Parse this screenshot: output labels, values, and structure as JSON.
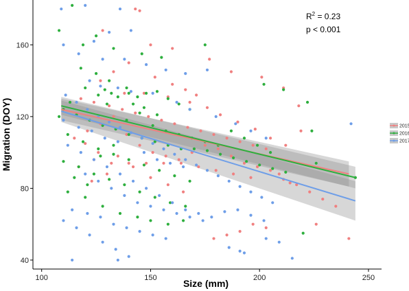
{
  "chart_data": {
    "type": "scatter",
    "xlabel": "Size (mm)",
    "ylabel": "Migration (DOY)",
    "xlim": [
      96,
      256
    ],
    "ylim": [
      35,
      185
    ],
    "xticks": [
      100,
      150,
      200,
      250
    ],
    "yticks": [
      40,
      80,
      120,
      160
    ],
    "grid": false,
    "legend_position": "right",
    "annotations": {
      "r2_prefix": "R",
      "r2_sup": "2",
      "r2_value": " = 0.23",
      "p_text": "p < 0.001"
    },
    "series": [
      {
        "name": "2015",
        "color": "#F08080",
        "fit": {
          "x": [
            109,
            241
          ],
          "y": [
            124,
            88
          ]
        },
        "ci": {
          "x": [
            109,
            241
          ],
          "upper": [
            130,
            95
          ],
          "lower": [
            118,
            81
          ]
        },
        "points": [
          [
            143,
            180
          ],
          [
            145,
            179
          ],
          [
            128,
            168
          ],
          [
            150,
            160
          ],
          [
            160,
            158
          ],
          [
            177,
            152
          ],
          [
            187,
            145
          ],
          [
            201,
            142
          ],
          [
            211,
            136
          ],
          [
            218,
            126
          ],
          [
            138,
            133
          ],
          [
            147,
            133
          ],
          [
            158,
            131
          ],
          [
            168,
            128
          ],
          [
            176,
            125
          ],
          [
            182,
            121
          ],
          [
            190,
            117
          ],
          [
            198,
            113
          ],
          [
            205,
            108
          ],
          [
            212,
            104
          ],
          [
            118,
            130
          ],
          [
            124,
            128
          ],
          [
            131,
            126
          ],
          [
            137,
            124
          ],
          [
            143,
            122
          ],
          [
            149,
            120
          ],
          [
            155,
            118
          ],
          [
            161,
            116
          ],
          [
            167,
            114
          ],
          [
            173,
            112
          ],
          [
            179,
            110
          ],
          [
            185,
            108
          ],
          [
            191,
            106
          ],
          [
            197,
            104
          ],
          [
            203,
            102
          ],
          [
            124,
            96
          ],
          [
            132,
            94
          ],
          [
            140,
            94
          ],
          [
            148,
            94
          ],
          [
            156,
            94
          ],
          [
            164,
            94
          ],
          [
            172,
            92
          ],
          [
            180,
            90
          ],
          [
            188,
            88
          ],
          [
            196,
            86
          ],
          [
            115,
            108
          ],
          [
            121,
            112
          ],
          [
            127,
            116
          ],
          [
            133,
            120
          ],
          [
            139,
            110
          ],
          [
            145,
            104
          ],
          [
            151,
            100
          ],
          [
            157,
            98
          ],
          [
            163,
            96
          ],
          [
            169,
            100
          ],
          [
            175,
            104
          ],
          [
            181,
            102
          ],
          [
            187,
            98
          ],
          [
            193,
            94
          ],
          [
            199,
            92
          ],
          [
            205,
            90
          ],
          [
            211,
            85
          ],
          [
            217,
            82
          ],
          [
            223,
            78
          ],
          [
            229,
            74
          ],
          [
            235,
            70
          ],
          [
            179,
            52
          ],
          [
            185,
            54
          ],
          [
            191,
            56
          ],
          [
            197,
            60
          ],
          [
            203,
            58
          ],
          [
            226,
            60
          ],
          [
            241,
            52
          ],
          [
            214,
            83
          ],
          [
            219,
            112
          ],
          [
            209,
            88
          ],
          [
            140,
            150
          ],
          [
            133,
            145
          ],
          [
            127,
            140
          ],
          [
            152,
            142
          ],
          [
            160,
            138
          ],
          [
            166,
            135
          ],
          [
            171,
            132
          ],
          [
            120,
            105
          ],
          [
            126,
            100
          ],
          [
            135,
            98
          ],
          [
            142,
            92
          ],
          [
            150,
            86
          ],
          [
            158,
            82
          ],
          [
            165,
            78
          ],
          [
            130,
            88
          ],
          [
            123,
            84
          ],
          [
            117,
            92
          ]
        ]
      },
      {
        "name": "2016",
        "color": "#2EAF3E",
        "fit": {
          "x": [
            109,
            244
          ],
          "y": [
            126,
            86
          ]
        },
        "ci": {
          "x": [
            109,
            244
          ],
          "upper": [
            131,
            92
          ],
          "lower": [
            121,
            80
          ]
        },
        "points": [
          [
            114,
            182
          ],
          [
            108,
            168
          ],
          [
            125,
            165
          ],
          [
            119,
            160
          ],
          [
            133,
            158
          ],
          [
            146,
            155
          ],
          [
            155,
            153
          ],
          [
            175,
            160
          ],
          [
            202,
            138
          ],
          [
            211,
            135
          ],
          [
            222,
            128
          ],
          [
            224,
            112
          ],
          [
            226,
            94
          ],
          [
            244,
            86
          ],
          [
            220,
            55
          ],
          [
            118,
            147
          ],
          [
            125,
            144
          ],
          [
            131,
            140
          ],
          [
            139,
            136
          ],
          [
            129,
            135
          ],
          [
            132,
            133
          ],
          [
            135,
            131
          ],
          [
            140,
            133
          ],
          [
            144,
            131
          ],
          [
            148,
            133
          ],
          [
            153,
            134
          ],
          [
            158,
            130
          ],
          [
            163,
            127
          ],
          [
            168,
            124
          ],
          [
            110,
            124
          ],
          [
            116,
            121
          ],
          [
            122,
            118
          ],
          [
            128,
            115
          ],
          [
            134,
            113
          ],
          [
            140,
            110
          ],
          [
            146,
            108
          ],
          [
            152,
            106
          ],
          [
            158,
            104
          ],
          [
            164,
            102
          ],
          [
            170,
            102
          ],
          [
            176,
            101
          ],
          [
            182,
            99
          ],
          [
            188,
            97
          ],
          [
            194,
            95
          ],
          [
            200,
            93
          ],
          [
            206,
            91
          ],
          [
            212,
            89
          ],
          [
            112,
            110
          ],
          [
            119,
            106
          ],
          [
            126,
            102
          ],
          [
            133,
            99
          ],
          [
            140,
            96
          ],
          [
            147,
            93
          ],
          [
            154,
            90
          ],
          [
            161,
            87
          ],
          [
            168,
            84
          ],
          [
            110,
            95
          ],
          [
            117,
            92
          ],
          [
            124,
            88
          ],
          [
            131,
            85
          ],
          [
            138,
            82
          ],
          [
            145,
            78
          ],
          [
            152,
            75
          ],
          [
            159,
            72
          ],
          [
            166,
            70
          ],
          [
            112,
            78
          ],
          [
            120,
            75
          ],
          [
            128,
            70
          ],
          [
            136,
            66
          ],
          [
            144,
            64
          ],
          [
            150,
            62
          ],
          [
            158,
            60
          ],
          [
            165,
            62
          ],
          [
            115,
            86
          ],
          [
            121,
            82
          ],
          [
            127,
            98
          ],
          [
            133,
            104
          ],
          [
            139,
            118
          ],
          [
            145,
            122
          ],
          [
            151,
            115
          ],
          [
            157,
            112
          ],
          [
            163,
            110
          ],
          [
            169,
            108
          ],
          [
            175,
            106
          ],
          [
            181,
            104
          ],
          [
            187,
            112
          ],
          [
            193,
            108
          ],
          [
            199,
            104
          ],
          [
            205,
            100
          ],
          [
            120,
            136
          ],
          [
            126,
            132
          ],
          [
            130,
            127
          ],
          [
            142,
            127
          ],
          [
            147,
            125
          ],
          [
            153,
            121
          ],
          [
            108,
            120
          ],
          [
            113,
            128
          ]
        ]
      },
      {
        "name": "2017",
        "color": "#6E9EE8",
        "fit": {
          "x": [
            109,
            244
          ],
          "y": [
            123,
            73
          ]
        },
        "ci": {
          "x": [
            109,
            244
          ],
          "upper": [
            129,
            84
          ],
          "lower": [
            117,
            62
          ]
        },
        "points": [
          [
            109,
            180
          ],
          [
            120,
            182
          ],
          [
            136,
            180
          ],
          [
            131,
            167
          ],
          [
            141,
            168
          ],
          [
            110,
            160
          ],
          [
            124,
            162
          ],
          [
            117,
            155
          ],
          [
            128,
            152
          ],
          [
            138,
            152
          ],
          [
            148,
            149
          ],
          [
            157,
            146
          ],
          [
            166,
            144
          ],
          [
            176,
            146
          ],
          [
            122,
            140
          ],
          [
            127,
            137
          ],
          [
            135,
            136
          ],
          [
            141,
            134
          ],
          [
            151,
            133
          ],
          [
            162,
            128
          ],
          [
            168,
            124
          ],
          [
            180,
            120
          ],
          [
            189,
            116
          ],
          [
            196,
            112
          ],
          [
            203,
            108
          ],
          [
            111,
            132
          ],
          [
            116,
            128
          ],
          [
            121,
            124
          ],
          [
            126,
            120
          ],
          [
            131,
            117
          ],
          [
            136,
            114
          ],
          [
            141,
            111
          ],
          [
            146,
            108
          ],
          [
            151,
            105
          ],
          [
            156,
            102
          ],
          [
            161,
            99
          ],
          [
            166,
            96
          ],
          [
            171,
            93
          ],
          [
            176,
            90
          ],
          [
            181,
            87
          ],
          [
            186,
            84
          ],
          [
            191,
            81
          ],
          [
            196,
            78
          ],
          [
            201,
            75
          ],
          [
            206,
            72
          ],
          [
            112,
            104
          ],
          [
            118,
            100
          ],
          [
            124,
            96
          ],
          [
            130,
            92
          ],
          [
            136,
            88
          ],
          [
            142,
            84
          ],
          [
            148,
            80
          ],
          [
            154,
            76
          ],
          [
            160,
            72
          ],
          [
            166,
            68
          ],
          [
            172,
            66
          ],
          [
            178,
            64
          ],
          [
            184,
            67
          ],
          [
            190,
            68
          ],
          [
            196,
            65
          ],
          [
            202,
            62
          ],
          [
            110,
            62
          ],
          [
            116,
            58
          ],
          [
            122,
            54
          ],
          [
            128,
            50
          ],
          [
            134,
            46
          ],
          [
            140,
            42
          ],
          [
            114,
            40
          ],
          [
            135,
            40
          ],
          [
            186,
            47
          ],
          [
            191,
            45
          ],
          [
            193,
            44
          ],
          [
            215,
            41
          ],
          [
            242,
            116
          ],
          [
            114,
            68
          ],
          [
            121,
            66
          ],
          [
            127,
            64
          ],
          [
            133,
            60
          ],
          [
            139,
            58
          ],
          [
            145,
            56
          ],
          [
            151,
            54
          ],
          [
            157,
            52
          ],
          [
            120,
            88
          ],
          [
            126,
            84
          ],
          [
            132,
            80
          ],
          [
            138,
            76
          ],
          [
            144,
            72
          ],
          [
            150,
            70
          ],
          [
            156,
            68
          ],
          [
            162,
            66
          ],
          [
            168,
            64
          ],
          [
            174,
            62
          ],
          [
            203,
            52
          ],
          [
            209,
            50
          ],
          [
            110,
            118
          ],
          [
            117,
            114
          ],
          [
            123,
            112
          ],
          [
            129,
            108
          ],
          [
            135,
            106
          ],
          [
            147,
            100
          ],
          [
            153,
            96
          ],
          [
            159,
            94
          ],
          [
            165,
            92
          ]
        ]
      }
    ]
  }
}
